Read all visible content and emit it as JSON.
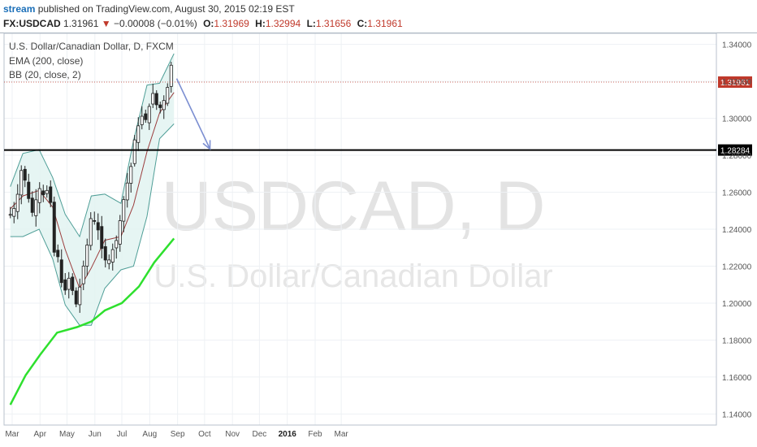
{
  "header": {
    "user": "stream",
    "published_text": "published on TradingView.com, August 30, 2015 02:19 EST",
    "symbol": "FX:USDCAD",
    "last": "1.31961",
    "down_arrow": "▼",
    "change": "−0.00008 (−0.01%)",
    "open_label": "O:",
    "open": "1.31969",
    "high_label": "H:",
    "high": "1.32994",
    "low_label": "L:",
    "low": "1.31656",
    "close_label": "C:",
    "close": "1.31961"
  },
  "legend": {
    "title": "U.S. Dollar/Canadian Dollar, D, FXCM",
    "ema": "EMA (200, close)",
    "bb": "BB (20, close, 2)"
  },
  "watermark": {
    "line1": "USDCAD, D",
    "line2": "U.S. Dollar/Canadian Dollar"
  },
  "chart_data": {
    "type": "candlestick",
    "symbol": "FX:USDCAD",
    "timeframe": "D",
    "x_ticks": [
      "Mar",
      "Apr",
      "May",
      "Jun",
      "Jul",
      "Aug",
      "Sep",
      "Oct",
      "Nov",
      "Dec",
      "2016",
      "Feb",
      "Mar"
    ],
    "y_ticks": [
      "1.14000",
      "1.16000",
      "1.18000",
      "1.20000",
      "1.22000",
      "1.24000",
      "1.26000",
      "1.28000",
      "1.30000",
      "1.32000",
      "1.34000"
    ],
    "ylim": [
      1.134,
      1.346
    ],
    "current_price_label": "1.31961",
    "horizontal_line_label": "1.28284",
    "horizontal_line_value": 1.28284,
    "close_path": [
      {
        "t": "2015-02-27",
        "v": 1.248
      },
      {
        "t": "2015-03-04",
        "v": 1.252
      },
      {
        "t": "2015-03-09",
        "v": 1.263
      },
      {
        "t": "2015-03-12",
        "v": 1.275
      },
      {
        "t": "2015-03-17",
        "v": 1.262
      },
      {
        "t": "2015-03-20",
        "v": 1.255
      },
      {
        "t": "2015-03-24",
        "v": 1.248
      },
      {
        "t": "2015-03-27",
        "v": 1.255
      },
      {
        "t": "2015-03-31",
        "v": 1.263
      },
      {
        "t": "2015-04-03",
        "v": 1.257
      },
      {
        "t": "2015-04-08",
        "v": 1.262
      },
      {
        "t": "2015-04-13",
        "v": 1.254
      },
      {
        "t": "2015-04-16",
        "v": 1.228
      },
      {
        "t": "2015-04-21",
        "v": 1.225
      },
      {
        "t": "2015-04-24",
        "v": 1.212
      },
      {
        "t": "2015-04-29",
        "v": 1.207
      },
      {
        "t": "2015-05-04",
        "v": 1.215
      },
      {
        "t": "2015-05-07",
        "v": 1.207
      },
      {
        "t": "2015-05-12",
        "v": 1.198
      },
      {
        "t": "2015-05-15",
        "v": 1.208
      },
      {
        "t": "2015-05-20",
        "v": 1.222
      },
      {
        "t": "2015-05-25",
        "v": 1.236
      },
      {
        "t": "2015-05-28",
        "v": 1.248
      },
      {
        "t": "2015-06-02",
        "v": 1.243
      },
      {
        "t": "2015-06-05",
        "v": 1.239
      },
      {
        "t": "2015-06-10",
        "v": 1.226
      },
      {
        "t": "2015-06-15",
        "v": 1.221
      },
      {
        "t": "2015-06-18",
        "v": 1.225
      },
      {
        "t": "2015-06-23",
        "v": 1.232
      },
      {
        "t": "2015-06-26",
        "v": 1.235
      },
      {
        "t": "2015-06-30",
        "v": 1.248
      },
      {
        "t": "2015-07-03",
        "v": 1.256
      },
      {
        "t": "2015-07-08",
        "v": 1.267
      },
      {
        "t": "2015-07-13",
        "v": 1.278
      },
      {
        "t": "2015-07-16",
        "v": 1.292
      },
      {
        "t": "2015-07-21",
        "v": 1.298
      },
      {
        "t": "2015-07-24",
        "v": 1.302
      },
      {
        "t": "2015-07-29",
        "v": 1.298
      },
      {
        "t": "2015-08-03",
        "v": 1.315
      },
      {
        "t": "2015-08-06",
        "v": 1.312
      },
      {
        "t": "2015-08-11",
        "v": 1.303
      },
      {
        "t": "2015-08-14",
        "v": 1.308
      },
      {
        "t": "2015-08-19",
        "v": 1.311
      },
      {
        "t": "2015-08-24",
        "v": 1.327
      },
      {
        "t": "2015-08-26",
        "v": 1.331
      },
      {
        "t": "2015-08-28",
        "v": 1.31961
      }
    ],
    "ema200": [
      {
        "t": "2015-02-27",
        "v": 1.145
      },
      {
        "t": "2015-03-16",
        "v": 1.161
      },
      {
        "t": "2015-04-01",
        "v": 1.172
      },
      {
        "t": "2015-04-20",
        "v": 1.184
      },
      {
        "t": "2015-05-12",
        "v": 1.187
      },
      {
        "t": "2015-05-28",
        "v": 1.19
      },
      {
        "t": "2015-06-12",
        "v": 1.196
      },
      {
        "t": "2015-07-01",
        "v": 1.2
      },
      {
        "t": "2015-07-20",
        "v": 1.209
      },
      {
        "t": "2015-08-06",
        "v": 1.222
      },
      {
        "t": "2015-08-28",
        "v": 1.235
      }
    ],
    "bb_upper": [
      {
        "t": "2015-02-27",
        "v": 1.263
      },
      {
        "t": "2015-03-13",
        "v": 1.281
      },
      {
        "t": "2015-03-31",
        "v": 1.283
      },
      {
        "t": "2015-04-15",
        "v": 1.268
      },
      {
        "t": "2015-04-29",
        "v": 1.248
      },
      {
        "t": "2015-05-15",
        "v": 1.236
      },
      {
        "t": "2015-05-28",
        "v": 1.258
      },
      {
        "t": "2015-06-12",
        "v": 1.259
      },
      {
        "t": "2015-06-30",
        "v": 1.254
      },
      {
        "t": "2015-07-14",
        "v": 1.288
      },
      {
        "t": "2015-07-29",
        "v": 1.318
      },
      {
        "t": "2015-08-12",
        "v": 1.319
      },
      {
        "t": "2015-08-28",
        "v": 1.335
      }
    ],
    "bb_middle": [
      {
        "t": "2015-02-27",
        "v": 1.251
      },
      {
        "t": "2015-03-13",
        "v": 1.258
      },
      {
        "t": "2015-03-31",
        "v": 1.261
      },
      {
        "t": "2015-04-15",
        "v": 1.252
      },
      {
        "t": "2015-04-29",
        "v": 1.229
      },
      {
        "t": "2015-05-15",
        "v": 1.208
      },
      {
        "t": "2015-05-28",
        "v": 1.219
      },
      {
        "t": "2015-06-12",
        "v": 1.234
      },
      {
        "t": "2015-06-30",
        "v": 1.236
      },
      {
        "t": "2015-07-14",
        "v": 1.253
      },
      {
        "t": "2015-07-29",
        "v": 1.282
      },
      {
        "t": "2015-08-12",
        "v": 1.303
      },
      {
        "t": "2015-08-28",
        "v": 1.314
      }
    ],
    "bb_lower": [
      {
        "t": "2015-02-27",
        "v": 1.236
      },
      {
        "t": "2015-03-13",
        "v": 1.236
      },
      {
        "t": "2015-03-31",
        "v": 1.24
      },
      {
        "t": "2015-04-15",
        "v": 1.224
      },
      {
        "t": "2015-04-29",
        "v": 1.199
      },
      {
        "t": "2015-05-15",
        "v": 1.188
      },
      {
        "t": "2015-05-28",
        "v": 1.188
      },
      {
        "t": "2015-06-12",
        "v": 1.208
      },
      {
        "t": "2015-06-30",
        "v": 1.218
      },
      {
        "t": "2015-07-14",
        "v": 1.22
      },
      {
        "t": "2015-07-29",
        "v": 1.247
      },
      {
        "t": "2015-08-12",
        "v": 1.289
      },
      {
        "t": "2015-08-28",
        "v": 1.297
      }
    ],
    "arrow": {
      "from": {
        "t": "2015-08-31",
        "v": 1.3215
      },
      "to": {
        "t": "2015-10-07",
        "v": 1.2834
      }
    },
    "colors": {
      "ema": "#2ee02e",
      "bb_band": "#4f9e97",
      "bb_fill": "#e2f3f1",
      "bb_middle": "#9b3d3d",
      "arrow": "#7b8ed1",
      "level_line": "#000000",
      "price_label_bg": "#c0392b",
      "bull_candle": "#ffffff",
      "bear_candle": "#222222"
    }
  }
}
